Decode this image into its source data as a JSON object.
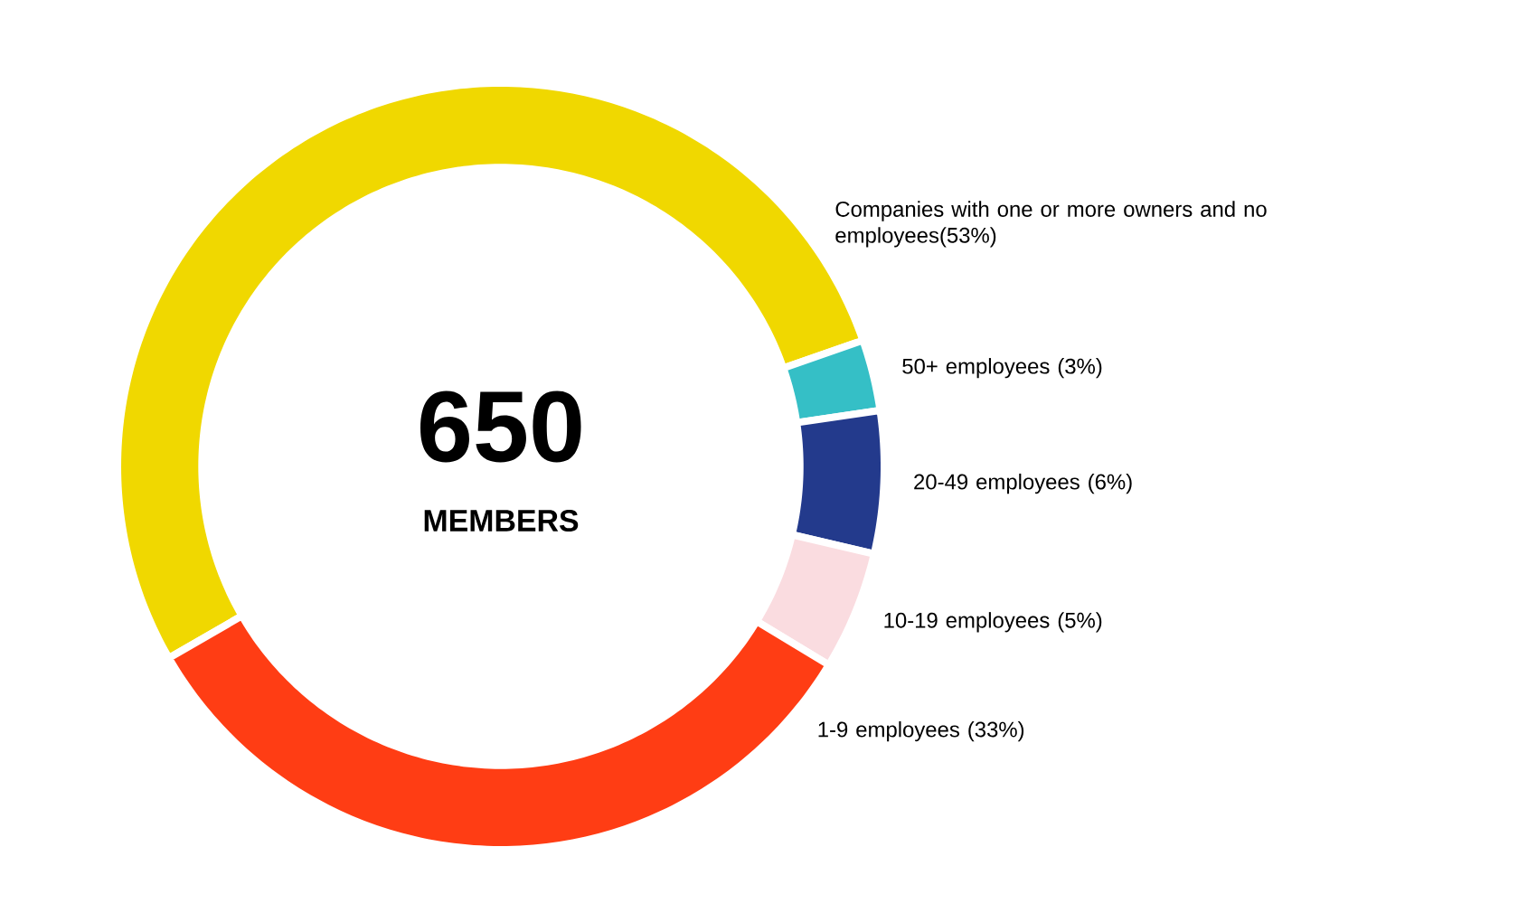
{
  "chart_data": {
    "type": "donut",
    "categories": [
      "Companies with one or more owners and no employees(53%)",
      "50+ employees (3%)",
      "20-49 employees (6%)",
      "10-19 employees (5%)",
      "1-9 employees (33%)"
    ],
    "values": [
      53,
      3,
      6,
      5,
      33
    ],
    "colors": [
      "#f0d800",
      "#35bfc6",
      "#233a8c",
      "#fadce0",
      "#ff3d14"
    ],
    "annotations": [
      "650",
      "MEMBERS"
    ]
  }
}
